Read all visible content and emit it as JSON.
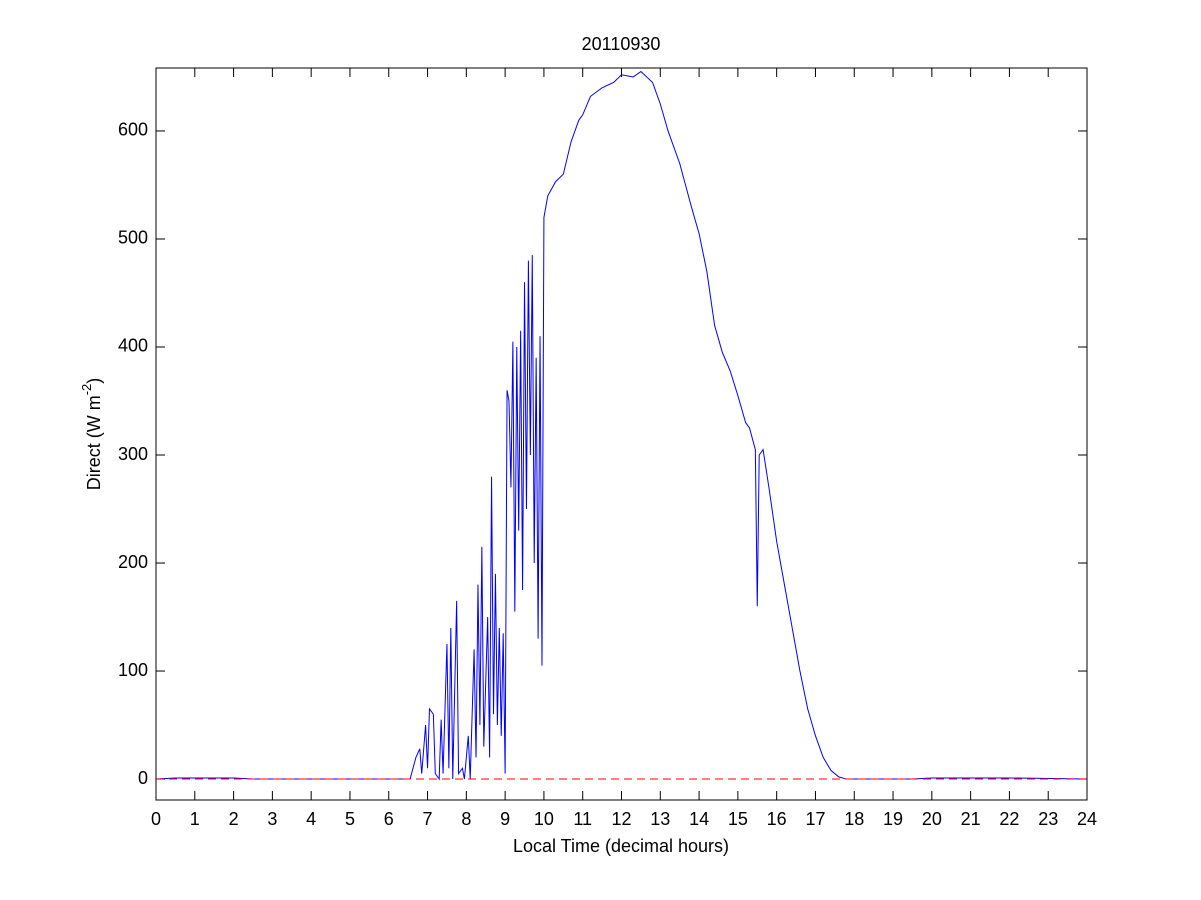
{
  "chart_data": {
    "type": "line",
    "title": "20110930",
    "xlabel": "Local Time (decimal hours)",
    "ylabel": {
      "text": "Direct (W m",
      "superscript": "-2",
      "suffix": ")"
    },
    "xlim": [
      0,
      24
    ],
    "xticks": [
      0,
      1,
      2,
      3,
      4,
      5,
      6,
      7,
      8,
      9,
      10,
      11,
      12,
      13,
      14,
      15,
      16,
      17,
      18,
      19,
      20,
      21,
      22,
      23,
      24
    ],
    "ylim": [
      -19.4,
      658.3
    ],
    "yticks": [
      0,
      100,
      200,
      300,
      400,
      500,
      600
    ],
    "grid": false,
    "legend": false,
    "series": [
      {
        "color": "#0000ff",
        "dash": false,
        "x": [
          0,
          0.5,
          1,
          2,
          2.5,
          6.5,
          6.55,
          6.7,
          6.8,
          6.85,
          6.95,
          7.0,
          7.05,
          7.15,
          7.2,
          7.3,
          7.35,
          7.4,
          7.5,
          7.55,
          7.6,
          7.65,
          7.75,
          7.8,
          7.9,
          7.95,
          8.05,
          8.1,
          8.2,
          8.25,
          8.3,
          8.35,
          8.4,
          8.45,
          8.55,
          8.6,
          8.65,
          8.7,
          8.75,
          8.8,
          8.85,
          8.9,
          8.95,
          9.0,
          9.05,
          9.1,
          9.15,
          9.2,
          9.25,
          9.3,
          9.35,
          9.4,
          9.45,
          9.5,
          9.55,
          9.6,
          9.65,
          9.7,
          9.75,
          9.8,
          9.85,
          9.9,
          9.95,
          10.0,
          10.1,
          10.3,
          10.5,
          10.7,
          10.9,
          11.0,
          11.2,
          11.5,
          11.8,
          12.0,
          12.3,
          12.5,
          12.8,
          13.0,
          13.2,
          13.5,
          13.8,
          14.0,
          14.2,
          14.4,
          14.6,
          14.8,
          15.0,
          15.2,
          15.3,
          15.45,
          15.5,
          15.55,
          15.65,
          15.8,
          16.0,
          16.2,
          16.4,
          16.6,
          16.8,
          17.0,
          17.2,
          17.4,
          17.6,
          17.8,
          19.5,
          20,
          22,
          24
        ],
        "values": [
          0,
          1,
          1,
          1,
          0,
          0,
          0,
          20,
          28,
          5,
          50,
          10,
          65,
          60,
          5,
          0,
          55,
          5,
          125,
          10,
          140,
          0,
          165,
          5,
          10,
          0,
          40,
          0,
          120,
          20,
          180,
          50,
          215,
          30,
          150,
          20,
          280,
          60,
          190,
          50,
          140,
          40,
          135,
          5,
          360,
          350,
          270,
          405,
          155,
          400,
          230,
          415,
          175,
          460,
          250,
          480,
          300,
          485,
          200,
          390,
          130,
          410,
          105,
          520,
          540,
          553,
          560,
          590,
          610,
          615,
          632,
          640,
          645,
          652,
          650,
          655,
          645,
          625,
          600,
          570,
          530,
          505,
          470,
          420,
          395,
          378,
          355,
          330,
          325,
          305,
          160,
          300,
          305,
          270,
          220,
          180,
          140,
          100,
          65,
          40,
          20,
          8,
          2,
          0,
          0,
          1,
          1,
          0
        ]
      },
      {
        "color": "#ff0000",
        "dash": true,
        "x": [
          0,
          24
        ],
        "values": [
          0,
          0
        ]
      }
    ]
  }
}
